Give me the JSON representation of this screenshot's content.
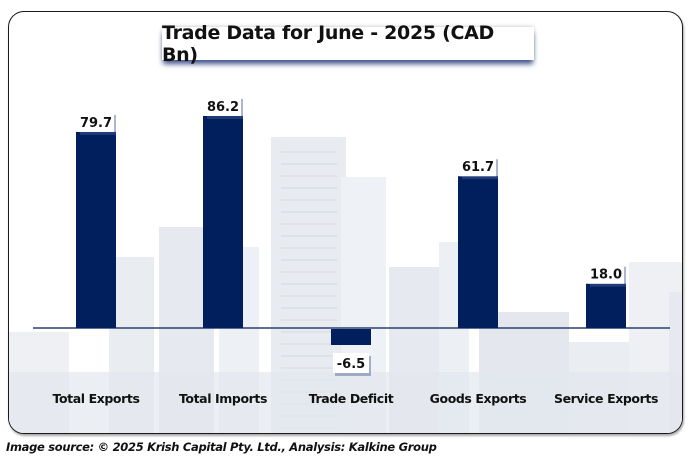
{
  "chart_data": {
    "type": "bar",
    "title": "Trade Data for June - 2025 (CAD Bn)",
    "categories": [
      "Total Exports",
      "Total Imports",
      "Trade Deficit",
      "Goods Exports",
      "Service Exports"
    ],
    "values": [
      79.7,
      86.2,
      -6.5,
      61.7,
      18.0
    ],
    "labels": [
      "79.7",
      "86.2",
      "-6.5",
      "61.7",
      "18.0"
    ],
    "xlabel": "",
    "ylabel": "",
    "ylim": [
      -6.5,
      86.2
    ],
    "grid": false,
    "legend": "none",
    "bar_color": "#001f5c",
    "axis_color": "#2b3f73"
  },
  "footer": {
    "source": "Image source: © 2025 Krish Capital Pty. Ltd., Analysis: Kalkine Group"
  }
}
